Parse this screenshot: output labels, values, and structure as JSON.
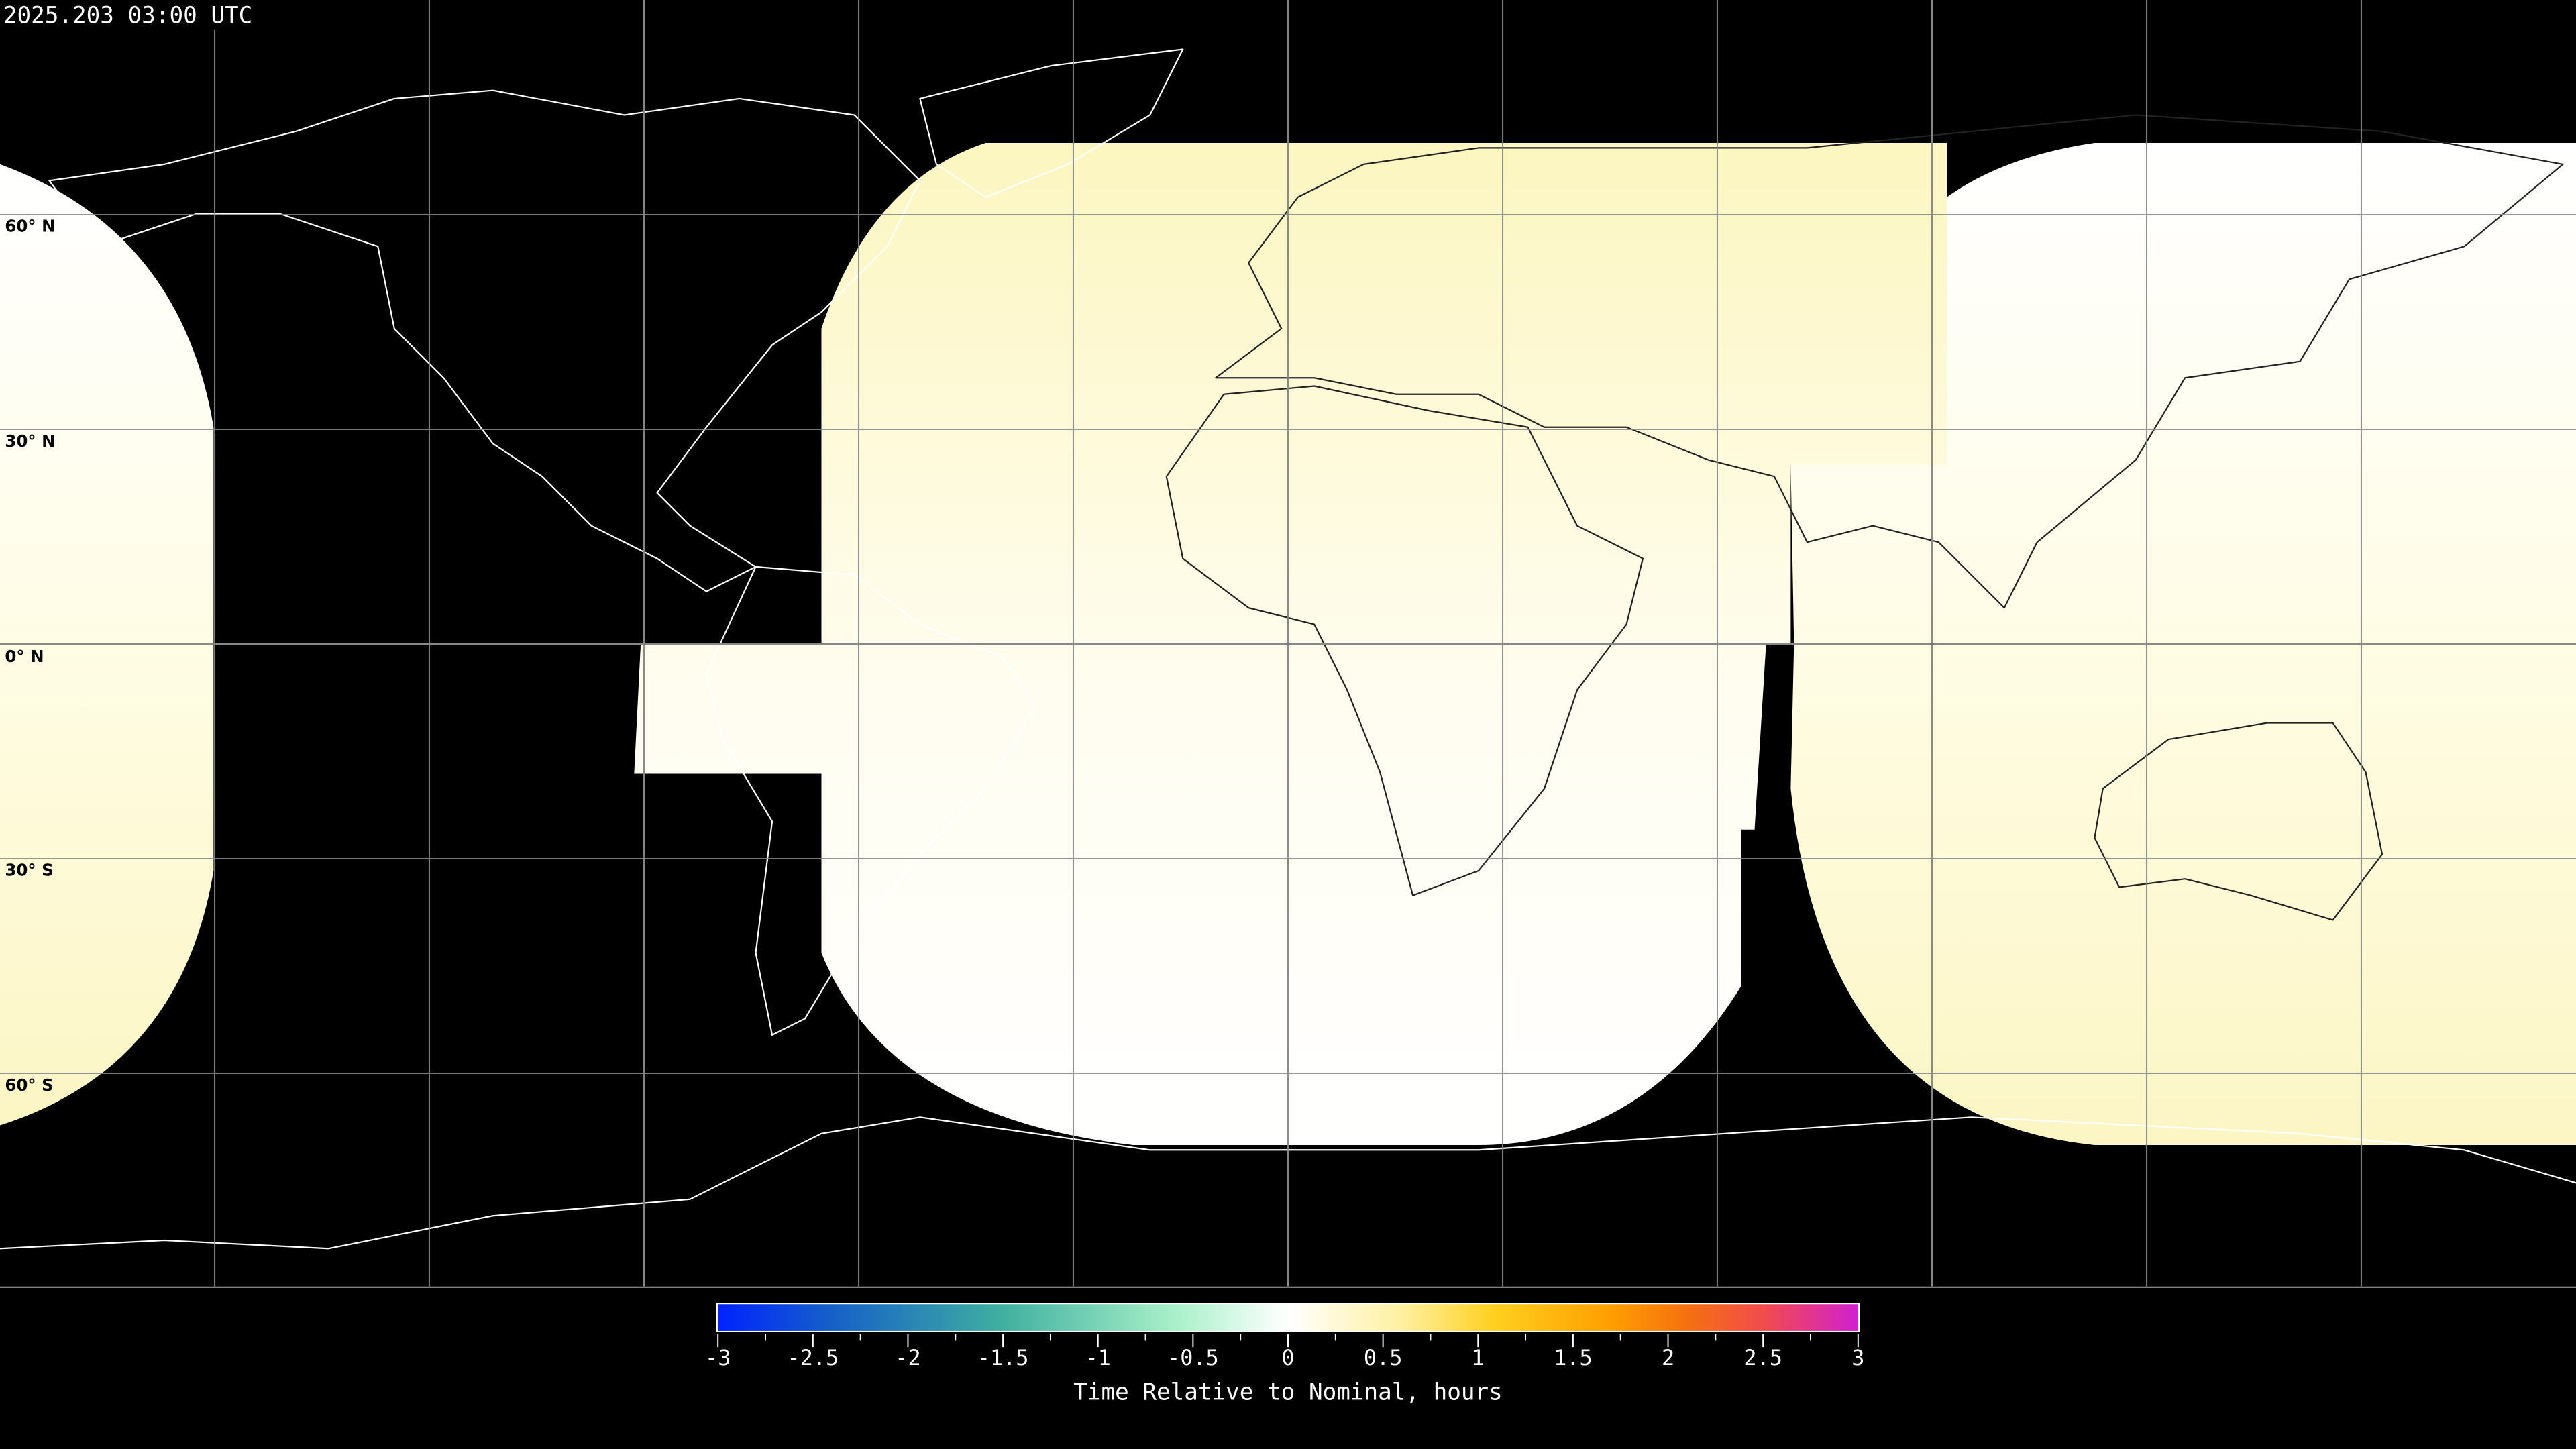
{
  "title": "2025.203 03:00 UTC",
  "map": {
    "projection": "equirectangular",
    "background_color": "#000000",
    "lat_labels": [
      "60° N",
      "30° N",
      "0° N",
      "30° S",
      "60° S"
    ],
    "grid_spacing_deg": 30
  },
  "chart_data": {
    "type": "heatmap",
    "title": "2025.203 03:00 UTC",
    "xlabel": "",
    "ylabel": "",
    "xlim": [
      -180,
      180
    ],
    "ylim": [
      -90,
      90
    ],
    "grid": true,
    "footprints": [
      {
        "lon_range": [
          -91,
          92
        ],
        "lat_range": [
          -70,
          70
        ],
        "value_top": 0.3,
        "value_bottom": 0.0
      },
      {
        "lon_range": [
          70,
          180
        ],
        "lat_range": [
          -70,
          70
        ],
        "value_top": 0.0,
        "value_bottom": 0.3
      },
      {
        "lon_range": [
          -180,
          -150
        ],
        "lat_range": [
          -67,
          67
        ],
        "value_top": 0.0,
        "value_bottom": 0.3
      }
    ],
    "colorbar": {
      "label": "Time Relative to Nominal, hours",
      "range": [
        -3,
        3
      ],
      "tick_labels": [
        "-3",
        "-2.5",
        "-2",
        "-1.5",
        "-1",
        "-0.5",
        "0",
        "0.5",
        "1",
        "1.5",
        "2",
        "2.5",
        "3"
      ],
      "colors": [
        "#0022ff",
        "#1a7fbf",
        "#50c8a0",
        "#e0fff0",
        "#ffffff",
        "#fff6b0",
        "#ffd020",
        "#ffa000",
        "#f56a10",
        "#f04a50",
        "#d020d0"
      ]
    }
  }
}
